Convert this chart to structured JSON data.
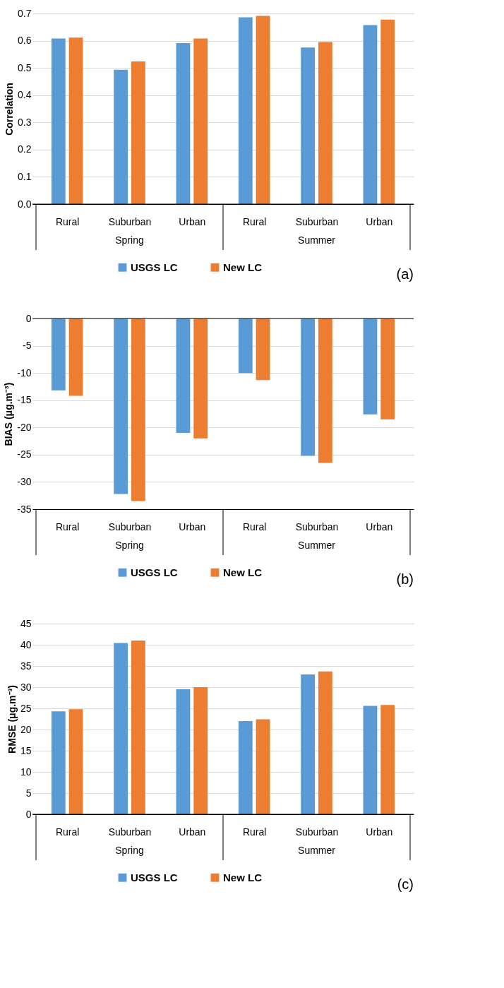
{
  "chart_data": [
    {
      "type": "bar",
      "title": "(a)",
      "ylabel": "Correlation",
      "categories": [
        "Rural",
        "Suburban",
        "Urban",
        "Rural",
        "Suburban",
        "Urban"
      ],
      "annotations": [
        "Spring",
        "Summer"
      ],
      "series": [
        {
          "name": "USGS LC",
          "color": "#5b9bd5",
          "values": [
            0.608,
            0.493,
            0.591,
            0.686,
            0.575,
            0.657
          ]
        },
        {
          "name": "New LC",
          "color": "#ed7d31",
          "values": [
            0.611,
            0.524,
            0.608,
            0.691,
            0.595,
            0.677
          ]
        }
      ],
      "ylim": [
        0,
        0.7
      ],
      "yticks": [
        {
          "value": 0,
          "label": "0.0"
        },
        0.1,
        0.2,
        0.3,
        0.4,
        0.5,
        0.6,
        0.7
      ],
      "grid": "y",
      "legend": "bottom"
    },
    {
      "type": "bar",
      "title": "(b)",
      "ylabel": "BIAS (μg.m⁻³)",
      "categories": [
        "Rural",
        "Suburban",
        "Urban",
        "Rural",
        "Suburban",
        "Urban"
      ],
      "annotations": [
        "Spring",
        "Summer"
      ],
      "series": [
        {
          "name": "USGS LC",
          "color": "#5b9bd5",
          "values": [
            -13.2,
            -32.2,
            -21.0,
            -10.0,
            -25.2,
            -17.6
          ]
        },
        {
          "name": "New LC",
          "color": "#ed7d31",
          "values": [
            -14.2,
            -33.5,
            -22.0,
            -11.3,
            -26.5,
            -18.5
          ]
        }
      ],
      "ylim": [
        -35,
        0
      ],
      "yticks": [
        -35,
        -30,
        -25,
        -20,
        -15,
        -10,
        -5,
        0
      ],
      "grid": "y",
      "legend": "bottom"
    },
    {
      "type": "bar",
      "title": "(c)",
      "ylabel": "RMSE (μg.m⁻³)",
      "categories": [
        "Rural",
        "Suburban",
        "Urban",
        "Rural",
        "Suburban",
        "Urban"
      ],
      "annotations": [
        "Spring",
        "Summer"
      ],
      "series": [
        {
          "name": "USGS LC",
          "color": "#5b9bd5",
          "values": [
            24.3,
            40.4,
            29.5,
            22.0,
            33.0,
            25.6
          ]
        },
        {
          "name": "New LC",
          "color": "#ed7d31",
          "values": [
            24.8,
            41.0,
            30.0,
            22.4,
            33.7,
            25.8
          ]
        }
      ],
      "ylim": [
        0,
        45
      ],
      "yticks": [
        0,
        5,
        10,
        15,
        20,
        25,
        30,
        35,
        40,
        45
      ],
      "grid": "y",
      "legend": "bottom"
    }
  ]
}
